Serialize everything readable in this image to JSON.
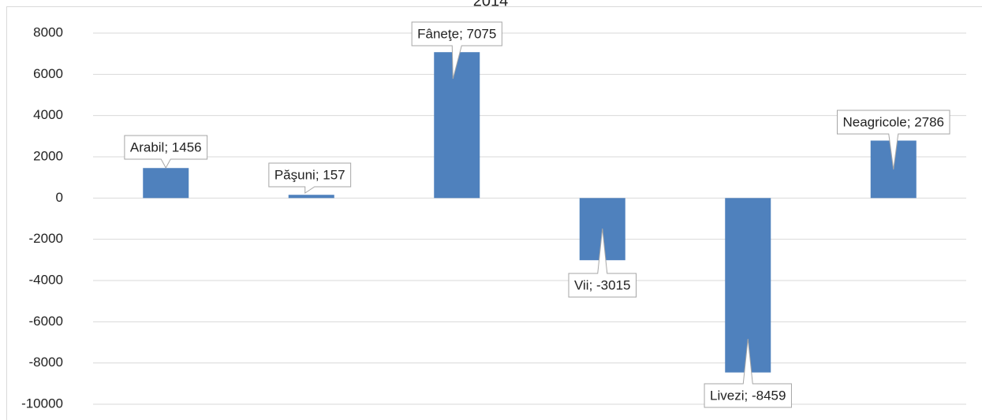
{
  "chart_data": {
    "type": "bar",
    "title": "2014",
    "values": [
      1456,
      157,
      7075,
      -3015,
      -8459,
      2786
    ],
    "value_labels": [
      "Arabil; 1456",
      "Păşuni; 157",
      "Fâneţe; 7075",
      "Vii; -3015",
      "Livezi; -8459",
      "Neagricole; 2786"
    ],
    "color": "#4f81bd",
    "ylim": [
      -10000,
      8000
    ],
    "yticks": [
      -10000,
      -8000,
      -6000,
      -4000,
      -2000,
      0,
      2000,
      4000,
      6000,
      8000
    ],
    "grid": true
  }
}
